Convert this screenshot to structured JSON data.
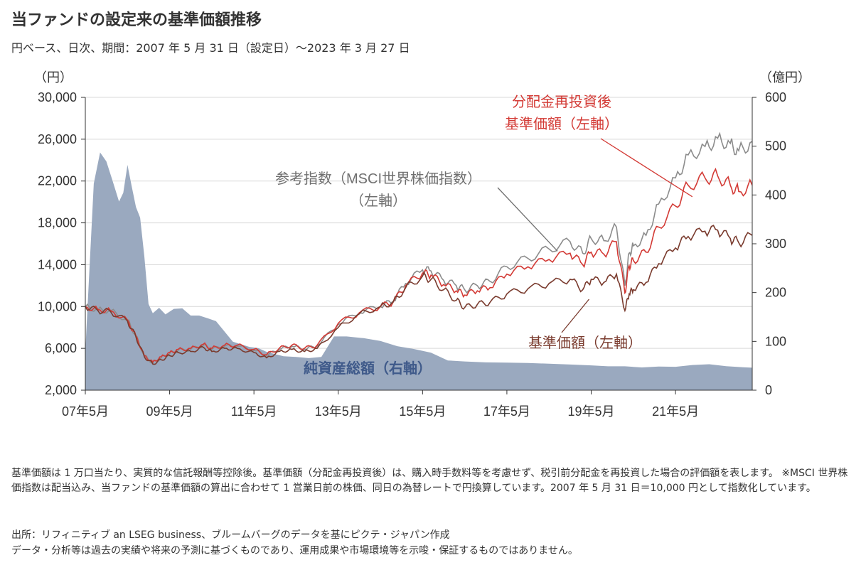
{
  "title": "当ファンドの設定来の基準価額推移",
  "subtitle": "円ベース、日次、期間：2007 年 5 月 31 日（設定日）～2023 年 3 月 27 日",
  "notes": "基準価額は 1 万口当たり、実質的な信託報酬等控除後。基準価額（分配金再投資後）は、購入時手数料等を考慮せず、税引前分配金を再投資した場合の評価額を表します。 ※MSCI 世界株価指数は配当込み、当ファンドの基準価額の算出に合わせて 1 営業日前の株価、同日の為替レートで円換算しています。2007 年 5 月 31 日＝10,000 円として指数化しています。",
  "source_line1": "出所：リフィニティブ an LSEG business、ブルームバーグのデータを基にピクテ・ジャパン作成",
  "source_line2": "データ・分析等は過去の実績や将来の予測に基づくものであり、運用成果や市場環境等を示唆・保証するものではありません。",
  "colors": {
    "nav": "#7a3b2e",
    "reinvested": "#d33a35",
    "msci": "#8c8c8c",
    "assets": "#9aa9bf",
    "assets_label": "#3f5a8a",
    "axis": "#333333"
  },
  "chart_data": {
    "type": "line",
    "x_unit": "years since 2007-05-31",
    "xlim": [
      0,
      15.82
    ],
    "x_ticks": [
      {
        "x": 0,
        "label": "07年5月"
      },
      {
        "x": 2,
        "label": "09年5月"
      },
      {
        "x": 4,
        "label": "11年5月"
      },
      {
        "x": 6,
        "label": "13年5月"
      },
      {
        "x": 8,
        "label": "15年5月"
      },
      {
        "x": 10,
        "label": "17年5月"
      },
      {
        "x": 12,
        "label": "19年5月"
      },
      {
        "x": 14,
        "label": "21年5月"
      }
    ],
    "y_left": {
      "unit_label": "（円）",
      "lim": [
        2000,
        30000
      ],
      "ticks": [
        2000,
        6000,
        10000,
        14000,
        18000,
        22000,
        26000,
        30000
      ],
      "tick_labels": [
        "2,000",
        "6,000",
        "10,000",
        "14,000",
        "18,000",
        "22,000",
        "26,000",
        "30,000"
      ]
    },
    "y_right": {
      "unit_label": "（億円）",
      "lim": [
        0,
        600
      ],
      "ticks": [
        0,
        100,
        200,
        300,
        400,
        500,
        600
      ],
      "tick_labels": [
        "0",
        "100",
        "200",
        "300",
        "400",
        "500",
        "600"
      ]
    },
    "grid": "horizontal",
    "series": [
      {
        "name": "純資産総額（右軸）",
        "type": "area",
        "axis": "right",
        "x": [
          0,
          0.2,
          0.35,
          0.5,
          0.65,
          0.8,
          0.9,
          1.0,
          1.1,
          1.2,
          1.3,
          1.4,
          1.5,
          1.6,
          1.75,
          1.9,
          2.1,
          2.3,
          2.5,
          2.7,
          2.9,
          3.1,
          3.3,
          3.5,
          3.7,
          3.9,
          4.1,
          4.3,
          4.5,
          4.7,
          5.0,
          5.3,
          5.6,
          5.9,
          6.2,
          6.6,
          7.0,
          7.4,
          7.8,
          8.2,
          8.6,
          9.0,
          9.5,
          10.0,
          10.5,
          11.0,
          11.5,
          12.0,
          12.4,
          12.8,
          13.2,
          13.6,
          14.0,
          14.4,
          14.8,
          15.2,
          15.6,
          15.82
        ],
        "y": [
          80,
          420,
          480,
          460,
          420,
          380,
          400,
          460,
          420,
          380,
          360,
          280,
          180,
          160,
          170,
          155,
          165,
          165,
          150,
          150,
          145,
          140,
          120,
          100,
          95,
          90,
          88,
          80,
          75,
          70,
          68,
          65,
          67,
          108,
          108,
          105,
          100,
          90,
          85,
          78,
          62,
          60,
          58,
          57,
          56,
          54,
          52,
          50,
          48,
          48,
          46,
          48,
          48,
          52,
          54,
          50,
          48,
          46
        ]
      },
      {
        "name": "参考指数（MSCI世界株価指数）（左軸）",
        "axis": "left",
        "x": [
          0,
          0.3,
          0.6,
          1.0,
          1.2,
          1.4,
          1.6,
          1.8,
          2.0,
          2.2,
          2.5,
          2.8,
          3.0,
          3.3,
          3.6,
          4.0,
          4.3,
          4.6,
          4.9,
          5.2,
          5.5,
          6.0,
          6.5,
          7.0,
          7.3,
          7.6,
          8.0,
          8.2,
          8.5,
          8.8,
          9.0,
          9.3,
          9.6,
          10.0,
          10.5,
          11.0,
          11.5,
          11.8,
          12.0,
          12.3,
          12.6,
          12.8,
          12.9,
          13.0,
          13.3,
          13.6,
          14.0,
          14.3,
          14.7,
          15.0,
          15.3,
          15.5,
          15.82
        ],
        "y": [
          10000,
          9700,
          9600,
          8700,
          7200,
          5300,
          4600,
          5100,
          5500,
          5800,
          5900,
          6300,
          5900,
          6200,
          6200,
          5800,
          5300,
          5900,
          6200,
          5900,
          6200,
          8300,
          9400,
          10000,
          10500,
          12200,
          13500,
          13400,
          12500,
          12000,
          11600,
          12000,
          12400,
          13800,
          14600,
          15500,
          16200,
          15100,
          16500,
          16300,
          17600,
          12000,
          15100,
          15800,
          16800,
          19800,
          22300,
          24500,
          25300,
          26100,
          25600,
          24900,
          25800
        ]
      },
      {
        "name": "分配金再投資後基準価額（左軸）",
        "axis": "left",
        "x": [
          0,
          0.3,
          0.6,
          1.0,
          1.2,
          1.4,
          1.6,
          1.8,
          2.0,
          2.2,
          2.5,
          2.8,
          3.0,
          3.3,
          3.6,
          4.0,
          4.3,
          4.6,
          4.9,
          5.2,
          5.5,
          6.0,
          6.5,
          7.0,
          7.3,
          7.6,
          8.0,
          8.2,
          8.5,
          8.8,
          9.0,
          9.3,
          9.6,
          10.0,
          10.5,
          11.0,
          11.5,
          11.8,
          12.0,
          12.3,
          12.6,
          12.8,
          12.9,
          13.0,
          13.3,
          13.6,
          14.0,
          14.3,
          14.7,
          15.0,
          15.3,
          15.5,
          15.82
        ],
        "y": [
          10000,
          9700,
          9600,
          8700,
          7200,
          5300,
          4700,
          5200,
          5600,
          5900,
          6000,
          6400,
          6000,
          6300,
          6300,
          5900,
          5400,
          6000,
          6300,
          6000,
          6300,
          8400,
          9400,
          10000,
          10400,
          12000,
          13200,
          13000,
          12100,
          11500,
          11100,
          11500,
          11800,
          13100,
          13800,
          14500,
          15100,
          14000,
          15200,
          15000,
          16200,
          11300,
          13900,
          14400,
          15200,
          17600,
          19600,
          21600,
          22300,
          22500,
          21600,
          21000,
          21600
        ]
      },
      {
        "name": "基準価額（左軸）",
        "axis": "left",
        "x": [
          0,
          0.3,
          0.6,
          1.0,
          1.2,
          1.4,
          1.6,
          1.8,
          2.0,
          2.2,
          2.5,
          2.8,
          3.0,
          3.3,
          3.6,
          4.0,
          4.3,
          4.6,
          4.9,
          5.2,
          5.5,
          6.0,
          6.5,
          7.0,
          7.3,
          7.6,
          8.0,
          8.2,
          8.5,
          8.8,
          9.0,
          9.3,
          9.6,
          10.0,
          10.5,
          11.0,
          11.5,
          11.8,
          12.0,
          12.3,
          12.6,
          12.8,
          12.9,
          13.0,
          13.3,
          13.6,
          14.0,
          14.3,
          14.7,
          15.0,
          15.3,
          15.5,
          15.82
        ],
        "y": [
          10000,
          9600,
          9500,
          8600,
          7100,
          5200,
          4500,
          4900,
          5300,
          5600,
          5700,
          6100,
          5700,
          6000,
          6000,
          5600,
          5100,
          5700,
          5900,
          5700,
          6000,
          8000,
          9300,
          10000,
          10400,
          11800,
          12900,
          12600,
          11600,
          10600,
          9900,
          10200,
          10400,
          11200,
          11700,
          12200,
          12600,
          11600,
          12600,
          12300,
          13100,
          9600,
          11200,
          11600,
          12300,
          14100,
          15600,
          16700,
          17200,
          17300,
          16500,
          16100,
          16800
        ]
      }
    ],
    "annotations": [
      {
        "text_lines": [
          "分配金再投資後",
          "基準価額（左軸）"
        ],
        "series": "分配金再投資後基準価額（左軸）",
        "arrow_to": {
          "x": 14.4,
          "y": 20500
        },
        "color": "#d33a35"
      },
      {
        "text_lines": [
          "参考指数（MSCI世界株価指数）",
          "（左軸）"
        ],
        "series": "参考指数（MSCI世界株価指数）（左軸）",
        "arrow_to": {
          "x": 11.2,
          "y": 15300
        },
        "color": "#8c8c8c"
      },
      {
        "text_lines": [
          "基準価額（左軸）"
        ],
        "series": "基準価額（左軸）",
        "arrow_to": {
          "x": 11.95,
          "y": 10700
        },
        "color": "#7a3b2e"
      },
      {
        "text_lines": [
          "純資産総額（右軸）"
        ],
        "series": "純資産総額（右軸）",
        "color": "#3f5a8a"
      }
    ]
  }
}
